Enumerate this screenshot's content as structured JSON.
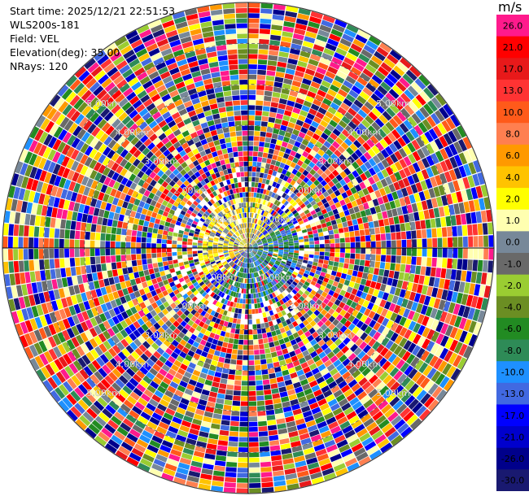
{
  "info": {
    "start_time": "Start time: 2025/12/21 22:51:53",
    "site": "WLS200s-181",
    "field": "Field: VEL",
    "elevation": "Elevation(deg): 35.00",
    "nrays": "NRays: 120"
  },
  "colorbar": {
    "unit": "m/s",
    "levels": [
      {
        "label": "26.0",
        "color": "#ff1a8c"
      },
      {
        "label": "21.0",
        "color": "#ff0000"
      },
      {
        "label": "17.0",
        "color": "#e8191a"
      },
      {
        "label": "13.0",
        "color": "#ff3333"
      },
      {
        "label": "10.0",
        "color": "#ff5a1a"
      },
      {
        "label": "8.0",
        "color": "#ff7f50"
      },
      {
        "label": "6.0",
        "color": "#ff9900"
      },
      {
        "label": "4.0",
        "color": "#ffc300"
      },
      {
        "label": "2.0",
        "color": "#ffff00"
      },
      {
        "label": "1.0",
        "color": "#ffffb0"
      },
      {
        "label": "0.0",
        "color": "#778899"
      },
      {
        "label": "-1.0",
        "color": "#696969"
      },
      {
        "label": "-2.0",
        "color": "#9acd32"
      },
      {
        "label": "-4.0",
        "color": "#6b8e23"
      },
      {
        "label": "-6.0",
        "color": "#228b22"
      },
      {
        "label": "-8.0",
        "color": "#2e8b57"
      },
      {
        "label": "-10.0",
        "color": "#1e90ff"
      },
      {
        "label": "-13.0",
        "color": "#4169e1"
      },
      {
        "label": "-17.0",
        "color": "#0000ff"
      },
      {
        "label": "-21.0",
        "color": "#0000cd"
      },
      {
        "label": "-26.0",
        "color": "#00008b"
      },
      {
        "label": "-30.0",
        "color": "#191970"
      }
    ]
  },
  "chart_data": {
    "type": "heatmap",
    "projection": "polar-ppi",
    "field": "VEL",
    "n_rays": 120,
    "elevation_deg": 35.0,
    "range_max_km": 6.0,
    "range_rings_km": [
      1,
      2,
      3,
      4,
      5,
      6
    ],
    "ring_labels": [
      "1.00km",
      "2.00km",
      "3.00km",
      "4.00km",
      "5.00km"
    ],
    "value_range": [
      -30,
      26
    ],
    "unit": "m/s"
  }
}
